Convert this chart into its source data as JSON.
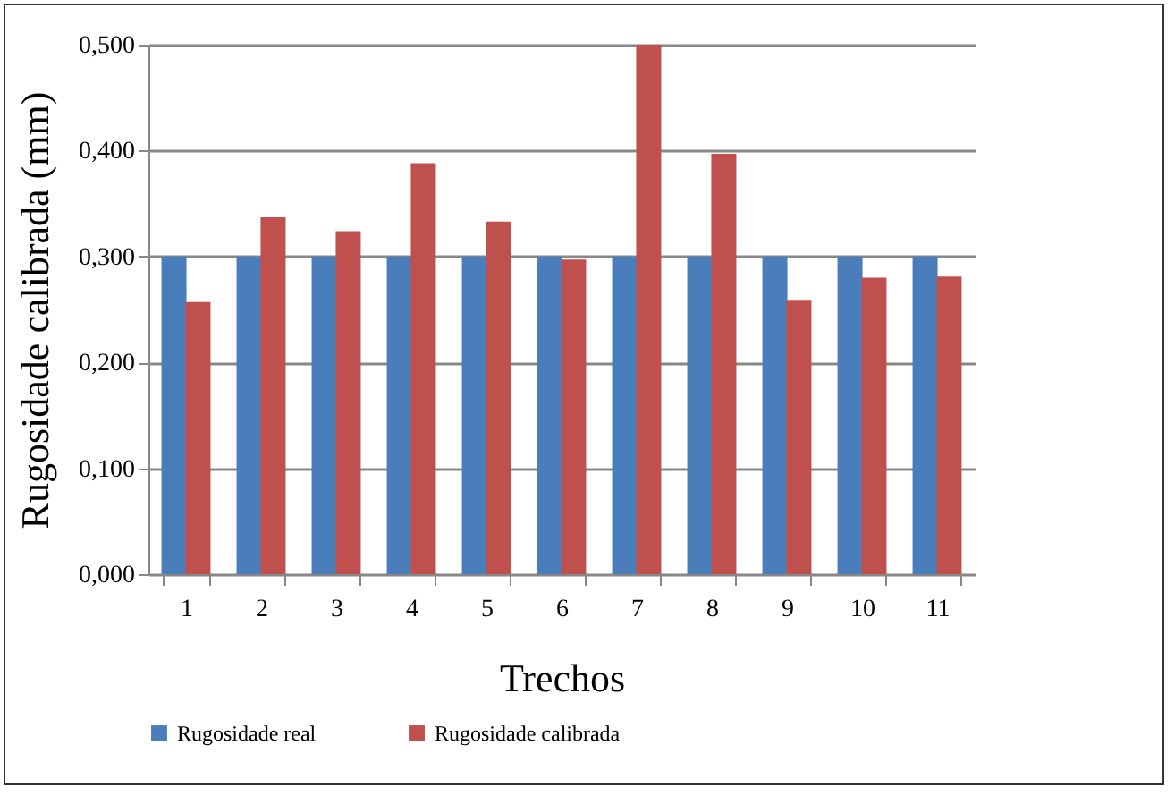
{
  "chart_data": {
    "type": "bar",
    "xlabel": "Trechos",
    "ylabel": "Rugosidade calibrada  (mm)",
    "categories": [
      "1",
      "2",
      "3",
      "4",
      "5",
      "6",
      "7",
      "8",
      "9",
      "10",
      "11"
    ],
    "series": [
      {
        "name": "Rugosidade real",
        "color": "#4a7ebb",
        "values": [
          0.3,
          0.3,
          0.3,
          0.3,
          0.3,
          0.3,
          0.3,
          0.3,
          0.3,
          0.3,
          0.3
        ]
      },
      {
        "name": "Rugosidade calibrada",
        "color": "#c0504d",
        "values": [
          0.257,
          0.337,
          0.324,
          0.388,
          0.333,
          0.297,
          0.5,
          0.397,
          0.259,
          0.28,
          0.281
        ]
      }
    ],
    "ylim": [
      0,
      0.5
    ],
    "yticks": [
      {
        "value": 0,
        "label": "0,000"
      },
      {
        "value": 0.1,
        "label": "0,100"
      },
      {
        "value": 0.2,
        "label": "0,200"
      },
      {
        "value": 0.3,
        "label": "0,300"
      },
      {
        "value": 0.4,
        "label": "0,400"
      },
      {
        "value": 0.5,
        "label": "0,500"
      }
    ],
    "grid": "y",
    "legend": "bottom"
  }
}
